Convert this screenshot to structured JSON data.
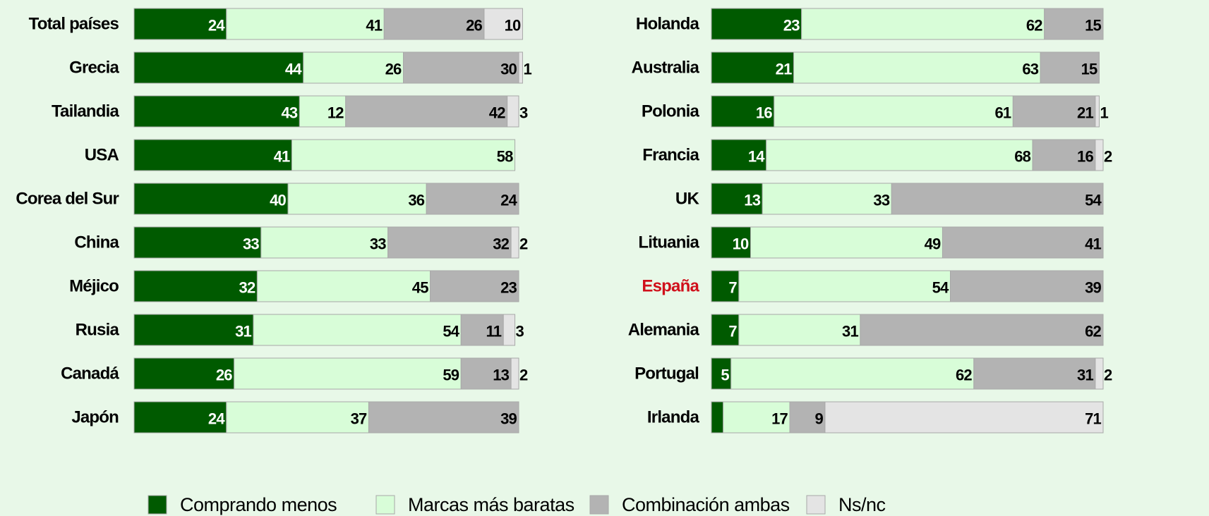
{
  "chart_data": {
    "type": "stacked_bar_horizontal",
    "categories": [
      "Total países",
      "Grecia",
      "Tailandia",
      "USA",
      "Corea del Sur",
      "China",
      "Méjico",
      "Rusia",
      "Canadá",
      "Japón",
      "Holanda",
      "Australia",
      "Polonia",
      "Francia",
      "UK",
      "Lituania",
      "España",
      "Alemania",
      "Portugal",
      "Irlanda"
    ],
    "category_colors": [
      "#000000",
      "#000000",
      "#000000",
      "#000000",
      "#000000",
      "#000000",
      "#000000",
      "#000000",
      "#000000",
      "#000000",
      "#000000",
      "#000000",
      "#000000",
      "#000000",
      "#000000",
      "#000000",
      "#d0101b",
      "#000000",
      "#000000",
      "#000000"
    ],
    "xlim": [
      0,
      100
    ],
    "series": [
      {
        "name": "Comprando menos",
        "color": "#005a00",
        "values": [
          24,
          44,
          43,
          41,
          40,
          33,
          32,
          31,
          26,
          24,
          23,
          21,
          16,
          14,
          13,
          10,
          7,
          7,
          5,
          3
        ]
      },
      {
        "name": "Marcas más baratas",
        "color": "#d8fdd8",
        "values": [
          41,
          26,
          12,
          58,
          36,
          33,
          45,
          54,
          59,
          37,
          62,
          63,
          61,
          68,
          33,
          49,
          54,
          31,
          62,
          17
        ]
      },
      {
        "name": "Combinación ambas",
        "color": "#b3b3b3",
        "values": [
          26,
          30,
          42,
          null,
          24,
          32,
          23,
          11,
          13,
          39,
          15,
          15,
          21,
          16,
          54,
          41,
          39,
          62,
          31,
          9
        ]
      },
      {
        "name": "Ns/nc",
        "color": "#e4e4e4",
        "values": [
          10,
          1,
          3,
          null,
          null,
          2,
          null,
          3,
          2,
          null,
          null,
          null,
          1,
          2,
          null,
          null,
          null,
          null,
          2,
          71
        ]
      }
    ]
  }
}
